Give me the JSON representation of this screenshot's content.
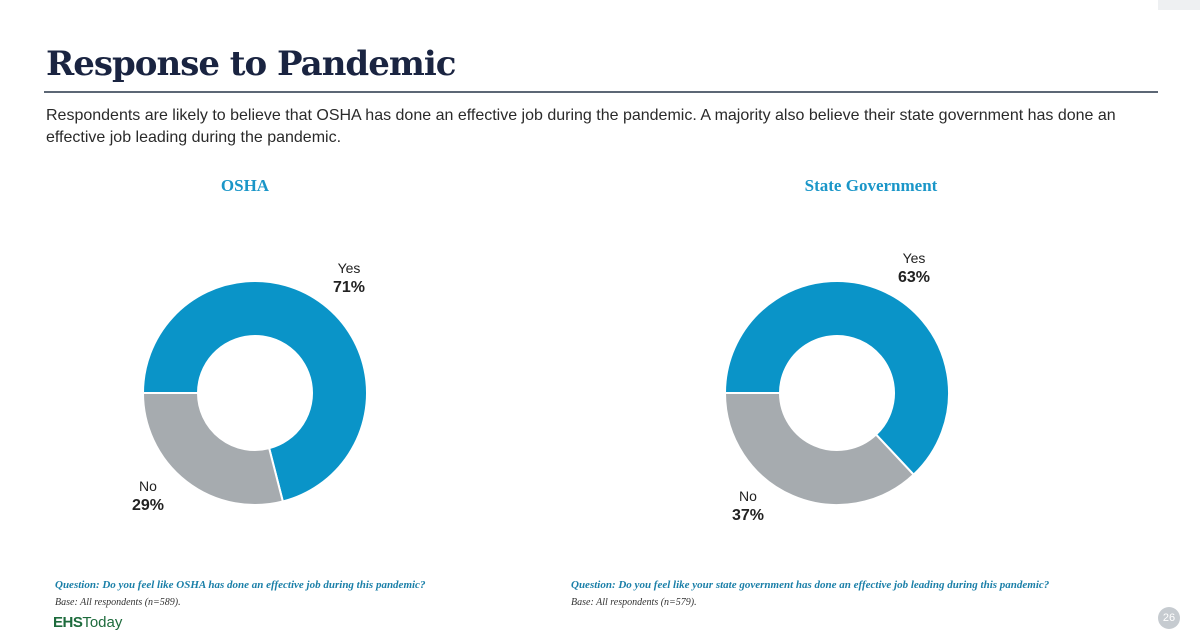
{
  "slide": {
    "title": "Response to Pandemic",
    "subtitle": "Respondents are likely to believe that OSHA has done an effective job during the pandemic. A majority also believe their state government has done an effective job leading during the pandemic.",
    "page_number": "26"
  },
  "logo": {
    "bold": "EHS",
    "light": "Today"
  },
  "colors": {
    "yes": "#0a94c8",
    "no": "#a6abaf",
    "heading": "#1a96c8"
  },
  "charts": [
    {
      "heading": "OSHA",
      "question": "Question: Do you feel like OSHA has done an effective job during this pandemic?",
      "base": "Base: All respondents (n=589)."
    },
    {
      "heading": "State Government",
      "question": "Question: Do you feel like your state government has done an effective job leading during this pandemic?",
      "base": "Base: All respondents (n=579)."
    }
  ],
  "chart_data": [
    {
      "type": "pie",
      "title": "OSHA",
      "categories": [
        "Yes",
        "No"
      ],
      "values": [
        71,
        29
      ],
      "labels": [
        "71%",
        "29%"
      ],
      "donut": true
    },
    {
      "type": "pie",
      "title": "State Government",
      "categories": [
        "Yes",
        "No"
      ],
      "values": [
        63,
        37
      ],
      "labels": [
        "63%",
        "37%"
      ],
      "donut": true
    }
  ]
}
